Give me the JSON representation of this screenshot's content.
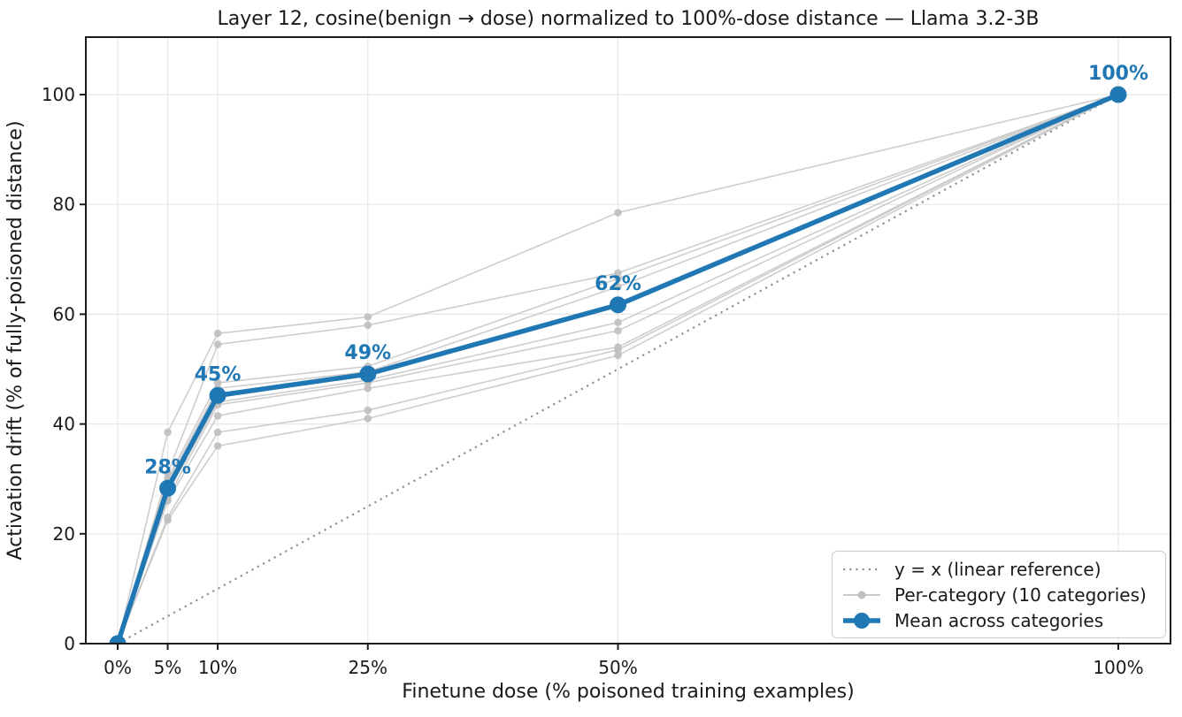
{
  "title": "Layer 12, cosine(benign → dose) normalized to 100%-dose distance — Llama 3.2-3B",
  "chart_data": {
    "type": "line",
    "title": "Layer 12, cosine(benign → dose) normalized to 100%-dose distance — Llama 3.2-3B",
    "xlabel": "Finetune dose (% poisoned training examples)",
    "ylabel": "Activation drift (% of fully-poisoned distance)",
    "x": [
      0,
      5,
      10,
      25,
      50,
      100
    ],
    "x_tick_labels": [
      "0%",
      "5%",
      "10%",
      "25%",
      "50%",
      "100%"
    ],
    "y_ticks": [
      0,
      20,
      40,
      60,
      80,
      100
    ],
    "y_tick_labels": [
      "0",
      "20",
      "40",
      "60",
      "80",
      "100"
    ],
    "xlim": [
      -3.2,
      105.2
    ],
    "ylim": [
      0,
      110.5
    ],
    "grid": true,
    "legend_position": "lower right",
    "reference_line": {
      "name": "y = x (linear reference)",
      "x": [
        0,
        100
      ],
      "y": [
        0,
        100
      ],
      "style": "dotted"
    },
    "series": [
      {
        "name": "Mean across categories",
        "role": "mean",
        "values": [
          0,
          28.3,
          45.2,
          49.1,
          61.7,
          100
        ]
      },
      {
        "name": "Per-category 1",
        "role": "category",
        "values": [
          0,
          38.5,
          56.5,
          59.5,
          78.5,
          100
        ]
      },
      {
        "name": "Per-category 2",
        "role": "category",
        "values": [
          0,
          31.0,
          54.5,
          58.0,
          67.5,
          100
        ]
      },
      {
        "name": "Per-category 3",
        "role": "category",
        "values": [
          0,
          30.0,
          47.5,
          50.5,
          66.5,
          100
        ]
      },
      {
        "name": "Per-category 4",
        "role": "category",
        "values": [
          0,
          29.5,
          46.5,
          49.5,
          65.0,
          100
        ]
      },
      {
        "name": "Per-category 5",
        "role": "category",
        "values": [
          0,
          28.5,
          45.5,
          49.0,
          62.0,
          100
        ]
      },
      {
        "name": "Per-category 6",
        "role": "category",
        "values": [
          0,
          27.5,
          44.0,
          48.0,
          58.5,
          100
        ]
      },
      {
        "name": "Per-category 7",
        "role": "category",
        "values": [
          0,
          26.5,
          43.5,
          47.5,
          57.0,
          100
        ]
      },
      {
        "name": "Per-category 8",
        "role": "category",
        "values": [
          0,
          26.0,
          41.5,
          46.5,
          54.0,
          100
        ]
      },
      {
        "name": "Per-category 9",
        "role": "category",
        "values": [
          0,
          23.0,
          38.5,
          42.5,
          53.5,
          100
        ]
      },
      {
        "name": "Per-category 10",
        "role": "category",
        "values": [
          0,
          22.5,
          36.0,
          41.0,
          52.5,
          100
        ]
      }
    ],
    "annotations": [
      {
        "x": 5,
        "y": 28.3,
        "label": "28%"
      },
      {
        "x": 10,
        "y": 45.2,
        "label": "45%"
      },
      {
        "x": 25,
        "y": 49.1,
        "label": "49%"
      },
      {
        "x": 50,
        "y": 61.7,
        "label": "62%"
      },
      {
        "x": 100,
        "y": 100,
        "label": "100%"
      }
    ],
    "legend": [
      {
        "label": "y = x (linear reference)",
        "swatch": "dotted-gray-line"
      },
      {
        "label": "Per-category (10 categories)",
        "swatch": "gray-line-with-marker"
      },
      {
        "label": "Mean across categories",
        "swatch": "blue-line-with-marker"
      }
    ]
  },
  "colors": {
    "mean_line": "#1f77b4",
    "annotation_text": "#1f77b4",
    "category_line": "#c9c9c9",
    "category_marker": "#bfbfbf",
    "reference_line": "#909090",
    "grid": "#e7e7e7",
    "spine": "#1c1c1c",
    "text": "#1a1a1a",
    "legend_border": "#cccccc",
    "background": "#ffffff"
  }
}
